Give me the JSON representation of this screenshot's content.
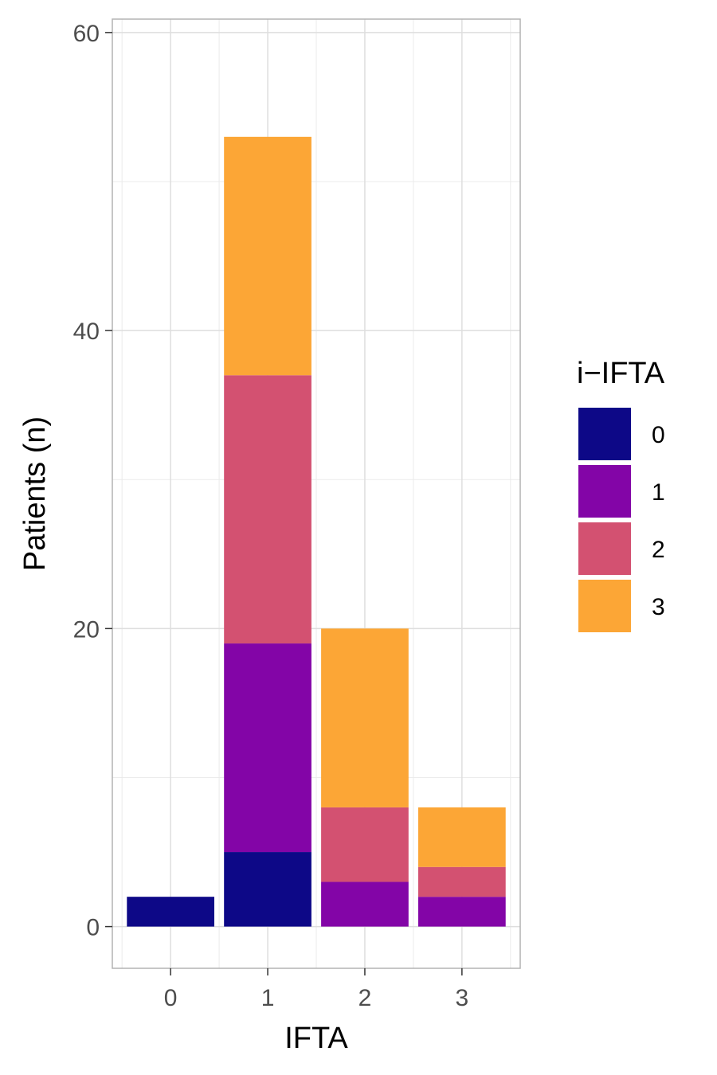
{
  "chart_data": {
    "type": "bar",
    "stacked": true,
    "categories": [
      "0",
      "1",
      "2",
      "3"
    ],
    "series": [
      {
        "name": "0",
        "color": "#0d0887",
        "values": [
          2,
          5,
          0,
          0
        ]
      },
      {
        "name": "1",
        "color": "#8305a7",
        "values": [
          0,
          14,
          3,
          2
        ]
      },
      {
        "name": "2",
        "color": "#d35171",
        "values": [
          0,
          18,
          5,
          2
        ]
      },
      {
        "name": "3",
        "color": "#fca636",
        "values": [
          0,
          16,
          12,
          4
        ]
      }
    ],
    "xlabel": "IFTA",
    "ylabel": "Patients (n)",
    "ylim": [
      -2.8,
      60.9
    ],
    "yticks": [
      0,
      20,
      40,
      60
    ],
    "grid": true,
    "legend": {
      "title": "i−IFTA",
      "position": "right"
    }
  }
}
